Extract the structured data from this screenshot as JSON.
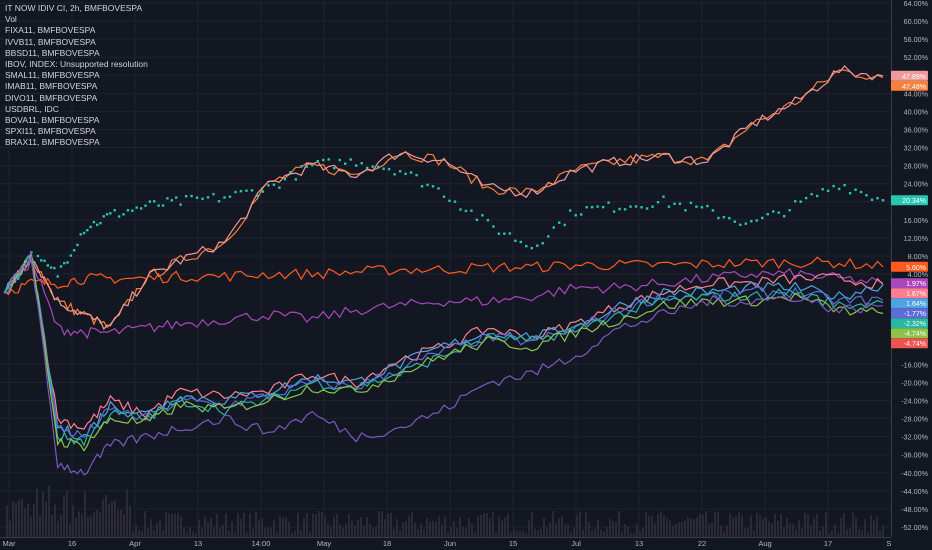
{
  "colors": {
    "background": "#131722",
    "grid": "#1f2330",
    "axis_text": "#b2b5be",
    "legend_text": "#d1d4dc",
    "divider": "#363a45"
  },
  "legend": {
    "items": [
      "IT NOW IDIV CI, 2h, BMFBOVESPA",
      "Vol",
      "FIXA11, BMFBOVESPA",
      "IVVB11, BMFBOVESPA",
      "BBSD11, BMFBOVESPA",
      "IBOV, INDEX: Unsupported resolution",
      "SMAL11, BMFBOVESPA",
      "IMAB11, BMFBOVESPA",
      "DIVO11, BMFBOVESPA",
      "USDBRL, IDC",
      "BOVA11, BMFBOVESPA",
      "SPXI11, BMFBOVESPA",
      "BRAX11, BMFBOVESPA"
    ]
  },
  "chart_data": {
    "type": "line",
    "y_unit": "%",
    "ylim": [
      -52,
      64
    ],
    "y_ticks": [
      "64.00%",
      "60.00%",
      "56.00%",
      "52.00%",
      "48.00%",
      "44.00%",
      "40.00%",
      "36.00%",
      "32.00%",
      "28.00%",
      "24.00%",
      "20.00%",
      "16.00%",
      "12.00%",
      "8.00%",
      "4.00%",
      "-16.00%",
      "-20.00%",
      "-24.00%",
      "-28.00%",
      "-32.00%",
      "-36.00%",
      "-40.00%",
      "-44.00%",
      "-48.00%",
      "-52.00%"
    ],
    "x_ticks": [
      "Mar",
      "16",
      "Apr",
      "13",
      "14:00",
      "May",
      "18",
      "Jun",
      "15",
      "Jul",
      "13",
      "22",
      "Aug",
      "17",
      "Se"
    ],
    "grid": true,
    "x": [
      0,
      3,
      6,
      9,
      12,
      16,
      20,
      25,
      30,
      35,
      40,
      45,
      50,
      55,
      60,
      65,
      70,
      75,
      80,
      85,
      90,
      95,
      100
    ],
    "series": [
      {
        "color": "#f7813d",
        "values": [
          0,
          8,
          -2,
          -5,
          -8,
          3,
          7,
          11,
          24,
          28,
          26,
          31,
          29,
          23,
          22,
          27,
          29,
          30,
          29,
          37,
          42,
          49,
          47.48
        ]
      },
      {
        "color": "#ef9a9a",
        "values": [
          0,
          8,
          -2,
          -5,
          -8,
          3,
          7,
          11,
          24,
          28,
          26,
          31,
          29,
          23,
          22,
          27,
          29,
          30,
          29,
          37,
          42,
          49,
          47.89
        ]
      },
      {
        "color": "#26c6b0",
        "values": [
          0,
          8,
          4,
          14,
          17,
          19,
          20,
          21,
          23,
          28,
          29,
          27,
          22,
          15,
          10,
          18,
          19,
          20,
          18,
          15,
          19,
          24,
          20.34
        ]
      },
      {
        "color": "#ff5b1f",
        "values": [
          0,
          2,
          2,
          3,
          3,
          3,
          3.5,
          3.5,
          4,
          4,
          4.5,
          5,
          5,
          5.5,
          5.5,
          6,
          6,
          6,
          6.2,
          6.5,
          6.6,
          6.5,
          5.6
        ]
      },
      {
        "color": "#ab47bc",
        "values": [
          0,
          7,
          -8,
          -9,
          -9,
          -8,
          -7,
          -6,
          -5,
          -6,
          -4,
          -3,
          -2,
          -2,
          -1,
          1,
          1,
          2,
          3,
          4,
          4,
          3,
          1.97
        ]
      },
      {
        "color": "#ff7f91",
        "values": [
          0,
          8,
          -28,
          -30,
          -24,
          -27,
          -22,
          -23,
          -22,
          -18,
          -20,
          -15,
          -12,
          -8,
          -10,
          -7,
          -3,
          0,
          2,
          2,
          3,
          3,
          1.67
        ]
      },
      {
        "color": "#4fa3e0",
        "values": [
          0,
          8,
          -30,
          -32,
          -25,
          -27,
          -23,
          -24,
          -22,
          -19,
          -20,
          -16,
          -12,
          -9,
          -10,
          -8,
          -3,
          0,
          0,
          1,
          1,
          -1,
          1.64
        ]
      },
      {
        "color": "#5e6bd8",
        "values": [
          0,
          8,
          -30,
          -32,
          -26,
          -28,
          -24,
          -25,
          -23,
          -20,
          -21,
          -17,
          -13,
          -10,
          -11,
          -8,
          -4,
          -1,
          -1,
          0,
          0,
          -2,
          -1.77
        ]
      },
      {
        "color": "#29b6a2",
        "values": [
          0,
          8,
          -32,
          -33,
          -27,
          -28,
          -24,
          -26,
          -24,
          -20,
          -21,
          -18,
          -14,
          -10,
          -11,
          -8,
          -5,
          -2,
          -1,
          -1,
          0,
          -3,
          -2.32
        ]
      },
      {
        "color": "#8bc34a",
        "values": [
          0,
          8,
          -33,
          -34,
          -28,
          -29,
          -25,
          -26,
          -24,
          -21,
          -22,
          -18,
          -14,
          -11,
          -12,
          -9,
          -6,
          -3,
          -2,
          -2,
          -1,
          -4,
          -4.74
        ]
      },
      {
        "color": "#7e57c2",
        "values": [
          0,
          8,
          -38,
          -40,
          -34,
          -32,
          -30,
          -28,
          -31,
          -27,
          -32,
          -30,
          -26,
          -20,
          -18,
          -14,
          -8,
          -5,
          -2,
          -2,
          -1,
          -4,
          -3
        ]
      }
    ],
    "dotted_series_index": 2,
    "price_labels": [
      {
        "text": "47.89%",
        "value": 47.89,
        "color": "#ef9a9a"
      },
      {
        "text": "47.48%",
        "value": 47.48,
        "color": "#f7813d"
      },
      {
        "text": "20.34%",
        "value": 20.34,
        "color": "#26c6b0"
      },
      {
        "text": "5.60%",
        "value": 5.6,
        "color": "#ff5b1f"
      },
      {
        "text": "1.97%",
        "value": 1.97,
        "color": "#ab47bc"
      },
      {
        "text": "1.67%",
        "value": 1.67,
        "color": "#ff7f91"
      },
      {
        "text": "1.64%",
        "value": 1.64,
        "color": "#4fa3e0"
      },
      {
        "text": "-1.77%",
        "value": -1.77,
        "color": "#5e6bd8"
      },
      {
        "text": "-2.32%",
        "value": -2.32,
        "color": "#29b6a2"
      },
      {
        "text": "-4.74%",
        "value": -4.74,
        "color": "#8bc34a"
      },
      {
        "text": "-4.74%",
        "value": -4.74,
        "color": "#ef5350"
      }
    ]
  }
}
